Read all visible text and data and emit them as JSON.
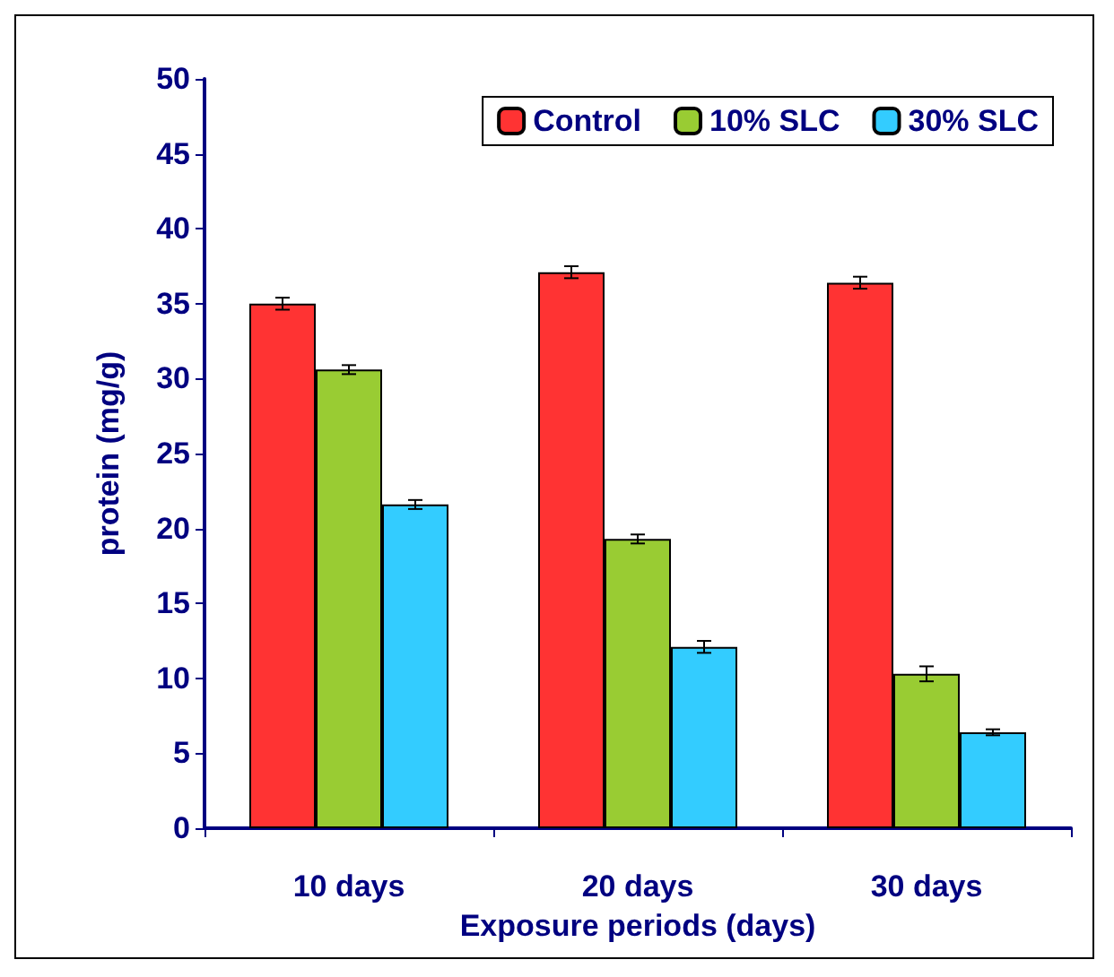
{
  "chart_data": {
    "type": "bar",
    "ylabel": "protein (mg/g)",
    "xlabel": "Exposure periods (days)",
    "categories": [
      "10 days",
      "20 days",
      "30 days"
    ],
    "series": [
      {
        "name": "Control",
        "color": "#ff3333",
        "values": [
          35.0,
          37.1,
          36.4
        ],
        "errors": [
          0.4,
          0.4,
          0.4
        ]
      },
      {
        "name": "10% SLC",
        "color": "#99cc33",
        "values": [
          30.6,
          19.3,
          10.3
        ],
        "errors": [
          0.3,
          0.3,
          0.5
        ]
      },
      {
        "name": "30% SLC",
        "color": "#33ccff",
        "values": [
          21.6,
          12.1,
          6.4
        ],
        "errors": [
          0.3,
          0.4,
          0.2
        ]
      }
    ],
    "ylim": [
      0,
      50
    ],
    "yticks": [
      0,
      5,
      10,
      15,
      20,
      25,
      30,
      35,
      40,
      45,
      50
    ],
    "grid": false,
    "legend": "top right"
  }
}
